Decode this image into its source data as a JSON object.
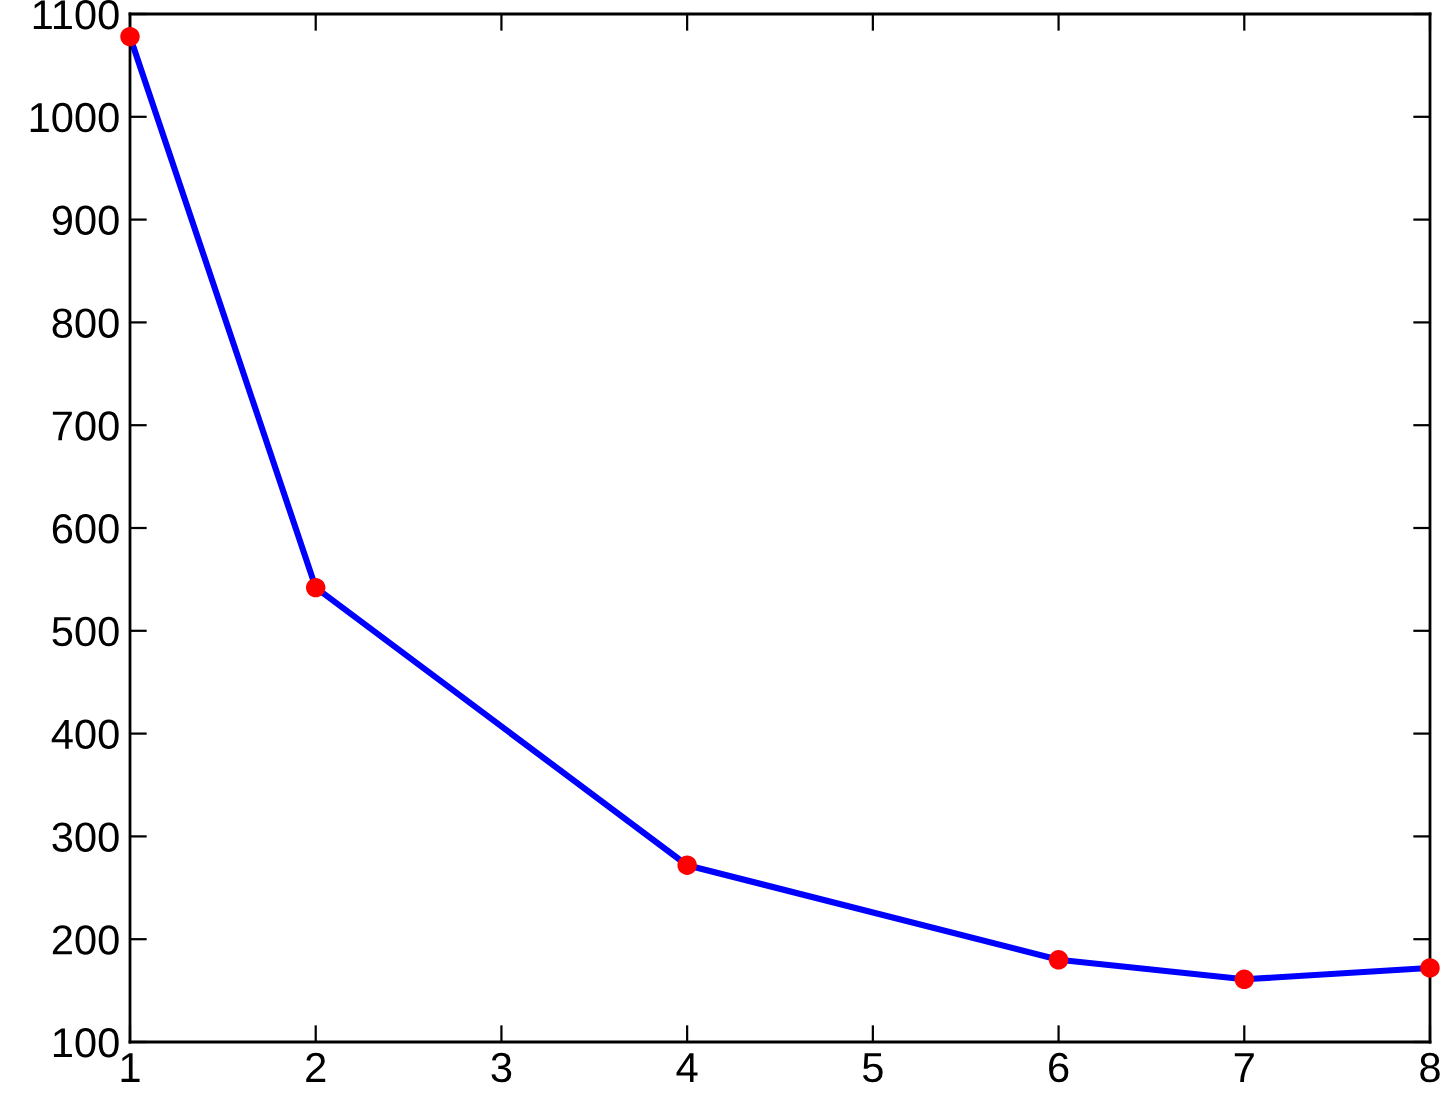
{
  "chart_data": {
    "type": "line",
    "x": [
      1,
      2,
      4,
      6,
      7,
      8
    ],
    "series": [
      {
        "color": "#0000ff",
        "colors": [
          "#ff0000",
          "#ff0000",
          "#ff0000",
          "#ff0000",
          "#ff0000",
          "#ff0000"
        ],
        "values": [
          1078,
          542,
          272,
          180,
          161,
          172
        ]
      }
    ],
    "marker": "circle",
    "line_style": "solid",
    "grid": false,
    "xlim": [
      1,
      8
    ],
    "xticks": [
      1,
      2,
      3,
      4,
      5,
      6,
      7,
      8
    ],
    "ylim": [
      100,
      1100
    ],
    "yticks": [
      100,
      200,
      300,
      400,
      500,
      600,
      700,
      800,
      900,
      1000,
      1100
    ]
  }
}
